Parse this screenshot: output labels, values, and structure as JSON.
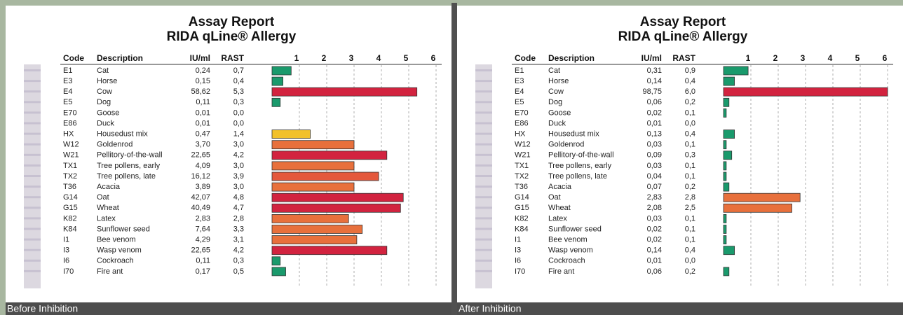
{
  "panels": [
    {
      "title": "Assay Report",
      "subtitle": "RIDA qLine® Allergy",
      "caption": "Before Inhibition",
      "columns": [
        "Code",
        "Description",
        "IU/ml",
        "RAST"
      ],
      "xlim": [
        0,
        6
      ],
      "xticks": [
        1,
        2,
        3,
        4,
        5,
        6
      ],
      "rows": [
        {
          "code": "E1",
          "description": "Cat",
          "iu_ml": "0,24",
          "rast": 0.7,
          "rast_label": "0,7",
          "color": "#1a9a6c"
        },
        {
          "code": "E3",
          "description": "Horse",
          "iu_ml": "0,15",
          "rast": 0.4,
          "rast_label": "0,4",
          "color": "#1a9a6c"
        },
        {
          "code": "E4",
          "description": "Cow",
          "iu_ml": "58,62",
          "rast": 5.3,
          "rast_label": "5,3",
          "color": "#d2233f"
        },
        {
          "code": "E5",
          "description": "Dog",
          "iu_ml": "0,11",
          "rast": 0.3,
          "rast_label": "0,3",
          "color": "#1a9a6c"
        },
        {
          "code": "E70",
          "description": "Goose",
          "iu_ml": "0,01",
          "rast": 0,
          "rast_label": "0,0",
          "color": "#1a9a6c"
        },
        {
          "code": "E86",
          "description": "Duck",
          "iu_ml": "0,01",
          "rast": 0,
          "rast_label": "0,0",
          "color": "#1a9a6c"
        },
        {
          "code": "HX",
          "description": "Housedust mix",
          "iu_ml": "0,47",
          "rast": 1.4,
          "rast_label": "1,4",
          "color": "#f2c12a"
        },
        {
          "code": "W12",
          "description": "Goldenrod",
          "iu_ml": "3,70",
          "rast": 3.0,
          "rast_label": "3,0",
          "color": "#e8703c"
        },
        {
          "code": "W21",
          "description": "Pellitory-of-the-wall",
          "iu_ml": "22,65",
          "rast": 4.2,
          "rast_label": "4,2",
          "color": "#d2233f"
        },
        {
          "code": "TX1",
          "description": "Tree pollens, early",
          "iu_ml": "4,09",
          "rast": 3.0,
          "rast_label": "3,0",
          "color": "#e8703c"
        },
        {
          "code": "TX2",
          "description": "Tree pollens, late",
          "iu_ml": "16,12",
          "rast": 3.9,
          "rast_label": "3,9",
          "color": "#e4583c"
        },
        {
          "code": "T36",
          "description": "Acacia",
          "iu_ml": "3,89",
          "rast": 3.0,
          "rast_label": "3,0",
          "color": "#e8703c"
        },
        {
          "code": "G14",
          "description": "Oat",
          "iu_ml": "42,07",
          "rast": 4.8,
          "rast_label": "4,8",
          "color": "#d2233f"
        },
        {
          "code": "G15",
          "description": "Wheat",
          "iu_ml": "40,49",
          "rast": 4.7,
          "rast_label": "4,7",
          "color": "#d2233f"
        },
        {
          "code": "K82",
          "description": "Latex",
          "iu_ml": "2,83",
          "rast": 2.8,
          "rast_label": "2,8",
          "color": "#e8703c"
        },
        {
          "code": "K84",
          "description": "Sunflower seed",
          "iu_ml": "7,64",
          "rast": 3.3,
          "rast_label": "3,3",
          "color": "#e8703c"
        },
        {
          "code": "I1",
          "description": "Bee venom",
          "iu_ml": "4,29",
          "rast": 3.1,
          "rast_label": "3,1",
          "color": "#e8703c"
        },
        {
          "code": "I3",
          "description": "Wasp venom",
          "iu_ml": "22,65",
          "rast": 4.2,
          "rast_label": "4,2",
          "color": "#d2233f"
        },
        {
          "code": "I6",
          "description": "Cockroach",
          "iu_ml": "0,11",
          "rast": 0.3,
          "rast_label": "0,3",
          "color": "#1a9a6c"
        },
        {
          "code": "I70",
          "description": "Fire ant",
          "iu_ml": "0,17",
          "rast": 0.5,
          "rast_label": "0,5",
          "color": "#1a9a6c"
        }
      ]
    },
    {
      "title": "Assay Report",
      "subtitle": "RIDA qLine® Allergy",
      "caption": "After Inhibition",
      "columns": [
        "Code",
        "Description",
        "IU/ml",
        "RAST"
      ],
      "xlim": [
        0,
        6
      ],
      "xticks": [
        1,
        2,
        3,
        4,
        5,
        6
      ],
      "rows": [
        {
          "code": "E1",
          "description": "Cat",
          "iu_ml": "0,31",
          "rast": 0.9,
          "rast_label": "0,9",
          "color": "#1a9a6c"
        },
        {
          "code": "E3",
          "description": "Horse",
          "iu_ml": "0,14",
          "rast": 0.4,
          "rast_label": "0,4",
          "color": "#1a9a6c"
        },
        {
          "code": "E4",
          "description": "Cow",
          "iu_ml": "98,75",
          "rast": 6.0,
          "rast_label": "6,0",
          "color": "#d2233f"
        },
        {
          "code": "E5",
          "description": "Dog",
          "iu_ml": "0,06",
          "rast": 0.2,
          "rast_label": "0,2",
          "color": "#1a9a6c"
        },
        {
          "code": "E70",
          "description": "Goose",
          "iu_ml": "0,02",
          "rast": 0.1,
          "rast_label": "0,1",
          "color": "#1a9a6c"
        },
        {
          "code": "E86",
          "description": "Duck",
          "iu_ml": "0,01",
          "rast": 0,
          "rast_label": "0,0",
          "color": "#1a9a6c"
        },
        {
          "code": "HX",
          "description": "Housedust mix",
          "iu_ml": "0,13",
          "rast": 0.4,
          "rast_label": "0,4",
          "color": "#1a9a6c"
        },
        {
          "code": "W12",
          "description": "Goldenrod",
          "iu_ml": "0,03",
          "rast": 0.1,
          "rast_label": "0,1",
          "color": "#1a9a6c"
        },
        {
          "code": "W21",
          "description": "Pellitory-of-the-wall",
          "iu_ml": "0,09",
          "rast": 0.3,
          "rast_label": "0,3",
          "color": "#1a9a6c"
        },
        {
          "code": "TX1",
          "description": "Tree pollens, early",
          "iu_ml": "0,03",
          "rast": 0.1,
          "rast_label": "0,1",
          "color": "#1a9a6c"
        },
        {
          "code": "TX2",
          "description": "Tree pollens, late",
          "iu_ml": "0,04",
          "rast": 0.1,
          "rast_label": "0,1",
          "color": "#1a9a6c"
        },
        {
          "code": "T36",
          "description": "Acacia",
          "iu_ml": "0,07",
          "rast": 0.2,
          "rast_label": "0,2",
          "color": "#1a9a6c"
        },
        {
          "code": "G14",
          "description": "Oat",
          "iu_ml": "2,83",
          "rast": 2.8,
          "rast_label": "2,8",
          "color": "#e8703c"
        },
        {
          "code": "G15",
          "description": "Wheat",
          "iu_ml": "2,08",
          "rast": 2.5,
          "rast_label": "2,5",
          "color": "#e8703c"
        },
        {
          "code": "K82",
          "description": "Latex",
          "iu_ml": "0,03",
          "rast": 0.1,
          "rast_label": "0,1",
          "color": "#1a9a6c"
        },
        {
          "code": "K84",
          "description": "Sunflower seed",
          "iu_ml": "0,02",
          "rast": 0.1,
          "rast_label": "0,1",
          "color": "#1a9a6c"
        },
        {
          "code": "I1",
          "description": "Bee venom",
          "iu_ml": "0,02",
          "rast": 0.1,
          "rast_label": "0,1",
          "color": "#1a9a6c"
        },
        {
          "code": "I3",
          "description": "Wasp venom",
          "iu_ml": "0,14",
          "rast": 0.4,
          "rast_label": "0,4",
          "color": "#1a9a6c"
        },
        {
          "code": "I6",
          "description": "Cockroach",
          "iu_ml": "0,01",
          "rast": 0,
          "rast_label": "0,0",
          "color": "#1a9a6c"
        },
        {
          "code": "I70",
          "description": "Fire ant",
          "iu_ml": "0,06",
          "rast": 0.2,
          "rast_label": "0,2",
          "color": "#1a9a6c"
        }
      ]
    }
  ]
}
